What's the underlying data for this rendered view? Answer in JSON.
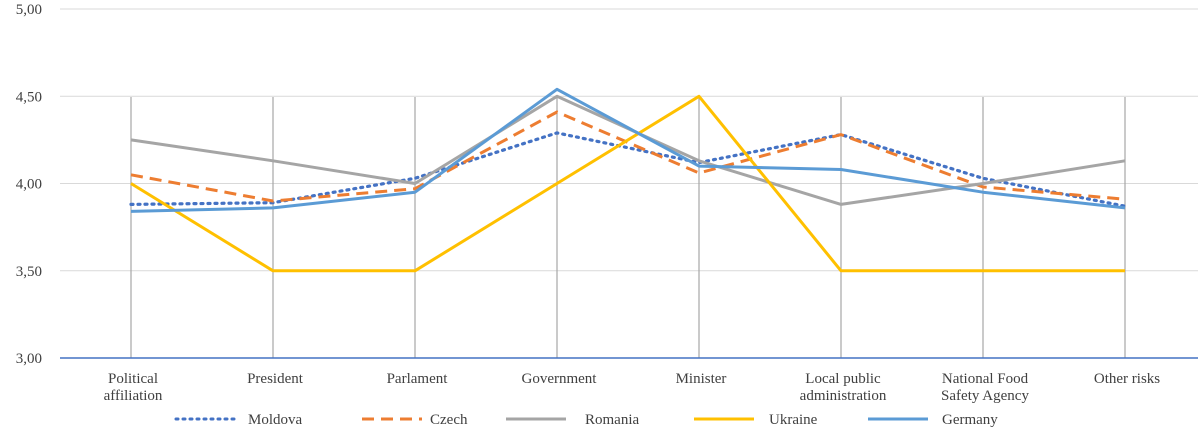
{
  "chart_data": {
    "type": "line",
    "title": "",
    "xlabel": "",
    "ylabel": "",
    "ylim": [
      3.0,
      5.0
    ],
    "yticks": [
      "3,00",
      "3,50",
      "4,00",
      "4,50",
      "5,00"
    ],
    "ytick_values": [
      3.0,
      3.5,
      4.0,
      4.5,
      5.0
    ],
    "grid": "vertical lines at categories and horizontal lines at y ticks",
    "legend_position": "bottom",
    "categories": [
      [
        "Political",
        "affiliation"
      ],
      [
        "President"
      ],
      [
        "Parlament"
      ],
      [
        "Government"
      ],
      [
        "Minister"
      ],
      [
        "Local public",
        "administration"
      ],
      [
        "National Food",
        "Safety Agency"
      ],
      [
        "Other risks"
      ]
    ],
    "series": [
      {
        "name": "Moldova",
        "color": "#4472c4",
        "style": "dotted",
        "values": [
          3.88,
          3.89,
          4.03,
          4.29,
          4.12,
          4.28,
          4.03,
          3.87
        ]
      },
      {
        "name": "Czech",
        "color": "#ed7d31",
        "style": "dashed",
        "values": [
          4.05,
          3.9,
          3.97,
          4.41,
          4.06,
          4.28,
          3.98,
          3.91
        ]
      },
      {
        "name": "Romania",
        "color": "#a5a5a5",
        "style": "solid",
        "values": [
          4.25,
          4.13,
          4.0,
          4.5,
          4.13,
          3.88,
          4.0,
          4.13
        ]
      },
      {
        "name": "Ukraine",
        "color": "#ffc000",
        "style": "solid",
        "values": [
          4.0,
          3.5,
          3.5,
          4.0,
          4.5,
          3.5,
          3.5,
          3.5
        ]
      },
      {
        "name": "Germany",
        "color": "#5b9bd5",
        "style": "solid",
        "values": [
          3.84,
          3.86,
          3.95,
          4.54,
          4.1,
          4.08,
          3.95,
          3.86
        ]
      }
    ]
  }
}
